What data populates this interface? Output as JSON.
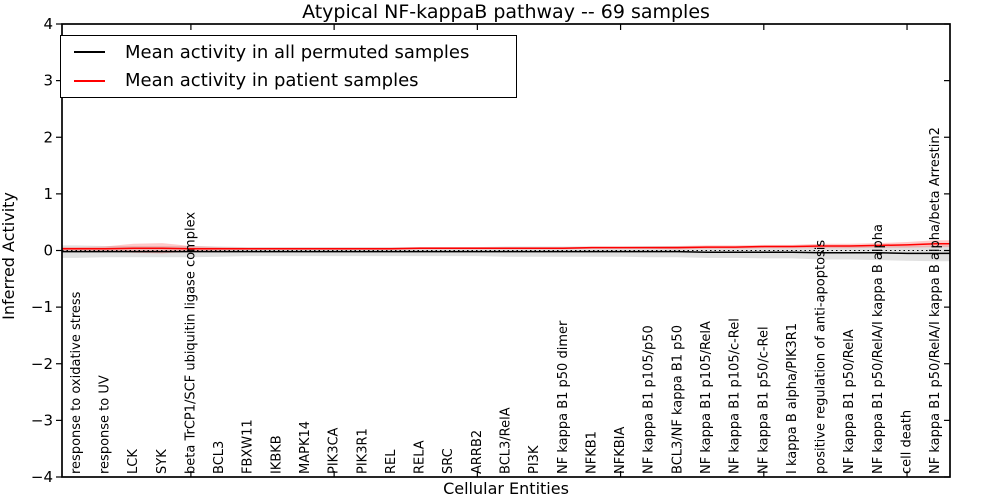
{
  "title": "Atypical NF-kappaB pathway -- 69 samples",
  "legend": {
    "items": [
      {
        "label": "Mean activity in all permuted samples",
        "color": "#000000"
      },
      {
        "label": "Mean activity in patient samples",
        "color": "#ff0000"
      }
    ]
  },
  "chart_data": {
    "type": "line",
    "title": "Atypical NF-kappaB pathway -- 69 samples",
    "xlabel": "Cellular Entities",
    "ylabel": "Inferred Activity",
    "ylim": [
      -4,
      4
    ],
    "yticks": [
      4,
      3,
      2,
      1,
      0,
      -1,
      -2,
      -3,
      -4
    ],
    "grid": false,
    "legend_position": "upper left",
    "x_spine_tick_indices": [
      4,
      9,
      14,
      19,
      24,
      29
    ],
    "categories": [
      "response to oxidative stress",
      "response to UV",
      "LCK",
      "SYK",
      "beta TrCP1/SCF ubiquitin ligase complex",
      "BCL3",
      "FBXW11",
      "IKBKB",
      "MAPK14",
      "PIK3CA",
      "PIK3R1",
      "REL",
      "RELA",
      "SRC",
      "ARRB2",
      "BCL3/RelA",
      "PI3K",
      "NF kappa B1 p50 dimer",
      "NFKB1",
      "NFKBIA",
      "NF kappa B1 p105/p50",
      "BCL3/NF kappa B1 p50",
      "NF kappa B1 p105/RelA",
      "NF kappa B1 p105/c-Rel",
      "NF kappa B1 p50/c-Rel",
      "I kappa B alpha/PIK3R1",
      "positive regulation of anti-apoptosis",
      "NF kappa B1 p50/RelA",
      "NF kappa B1 p50/RelA/I kappa B alpha",
      "cell death",
      "NF kappa B1 p50/RelA/I kappa B alpha/beta Arrestin2"
    ],
    "series": [
      {
        "name": "Mean activity in all permuted samples",
        "color": "#000000",
        "band_color": "#c9c9c9",
        "band_opacity": 0.55,
        "values": [
          -0.02,
          -0.02,
          -0.02,
          -0.02,
          -0.02,
          -0.02,
          -0.02,
          -0.02,
          -0.02,
          -0.02,
          -0.02,
          -0.02,
          -0.02,
          -0.02,
          -0.02,
          -0.02,
          -0.02,
          -0.02,
          -0.02,
          -0.02,
          -0.02,
          -0.02,
          -0.03,
          -0.03,
          -0.03,
          -0.03,
          -0.04,
          -0.04,
          -0.04,
          -0.05,
          -0.05
        ],
        "band_std": [
          0.11,
          0.1,
          0.1,
          0.1,
          0.1,
          0.09,
          0.08,
          0.08,
          0.08,
          0.08,
          0.08,
          0.08,
          0.08,
          0.08,
          0.08,
          0.09,
          0.09,
          0.09,
          0.09,
          0.09,
          0.1,
          0.1,
          0.1,
          0.1,
          0.11,
          0.11,
          0.12,
          0.12,
          0.13,
          0.13,
          0.14
        ]
      },
      {
        "name": "Mean activity in patient samples",
        "color": "#ff0000",
        "band_color": "#ff4d4d",
        "band_opacity": 0.3,
        "values": [
          0.03,
          0.03,
          0.04,
          0.04,
          0.03,
          0.03,
          0.03,
          0.03,
          0.03,
          0.03,
          0.03,
          0.03,
          0.04,
          0.04,
          0.04,
          0.04,
          0.04,
          0.04,
          0.05,
          0.05,
          0.05,
          0.05,
          0.06,
          0.06,
          0.07,
          0.07,
          0.08,
          0.08,
          0.09,
          0.1,
          0.12
        ],
        "band_std": [
          0.03,
          0.04,
          0.08,
          0.09,
          0.05,
          0.03,
          0.02,
          0.02,
          0.02,
          0.02,
          0.02,
          0.02,
          0.02,
          0.02,
          0.02,
          0.02,
          0.02,
          0.02,
          0.02,
          0.02,
          0.02,
          0.03,
          0.03,
          0.03,
          0.03,
          0.03,
          0.04,
          0.04,
          0.04,
          0.05,
          0.06
        ]
      }
    ],
    "zero_line": {
      "value": 0,
      "style": "dotted",
      "color": "#000000"
    }
  }
}
